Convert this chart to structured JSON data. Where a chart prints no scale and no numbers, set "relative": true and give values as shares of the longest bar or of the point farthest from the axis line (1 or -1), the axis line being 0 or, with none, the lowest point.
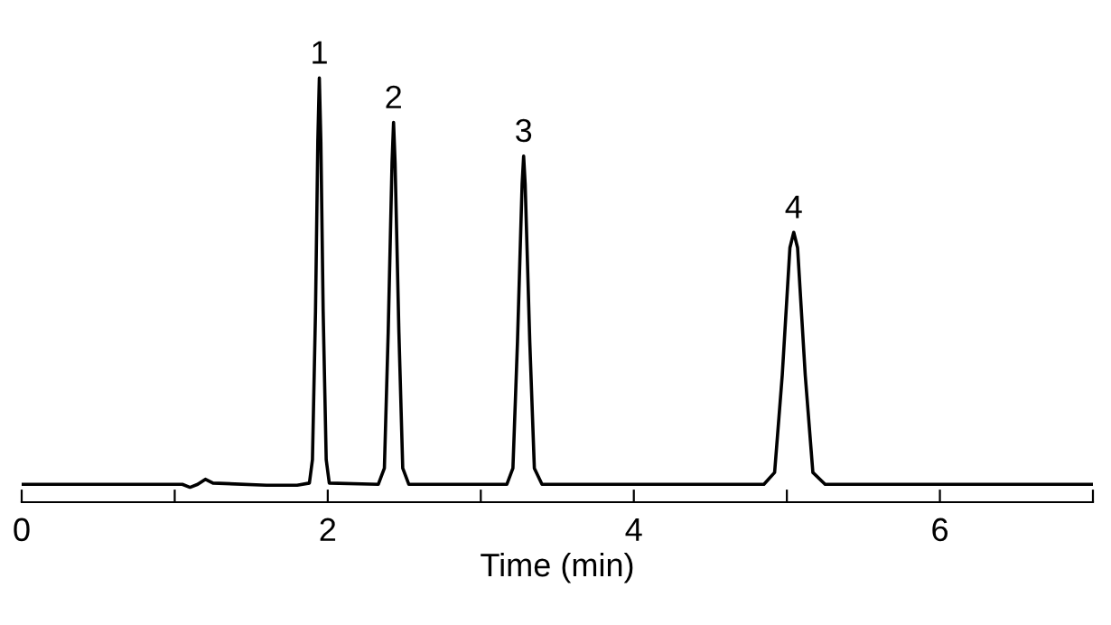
{
  "chart_data": {
    "type": "line",
    "relative": true,
    "xlabel": "Time (min)",
    "x": [
      0,
      0.5,
      1.05,
      1.1,
      1.15,
      1.2,
      1.25,
      1.6,
      1.8,
      1.88,
      1.9,
      1.92,
      1.935,
      1.945,
      1.955,
      1.97,
      1.99,
      2.01,
      2.33,
      2.37,
      2.395,
      2.42,
      2.43,
      2.44,
      2.465,
      2.49,
      2.53,
      3.17,
      3.21,
      3.24,
      3.27,
      3.28,
      3.29,
      3.32,
      3.35,
      3.4,
      4.85,
      4.92,
      4.97,
      5.02,
      5.045,
      5.07,
      5.12,
      5.17,
      5.25,
      7.0
    ],
    "series": [
      {
        "color": "#000000",
        "values": [
          0.042,
          0.042,
          0.042,
          0.035,
          0.042,
          0.054,
          0.045,
          0.04,
          0.04,
          0.045,
          0.1,
          0.45,
          0.85,
          1.0,
          0.85,
          0.45,
          0.1,
          0.045,
          0.042,
          0.08,
          0.4,
          0.8,
          0.895,
          0.8,
          0.4,
          0.08,
          0.042,
          0.042,
          0.08,
          0.38,
          0.75,
          0.816,
          0.75,
          0.38,
          0.08,
          0.042,
          0.042,
          0.07,
          0.3,
          0.6,
          0.636,
          0.6,
          0.3,
          0.07,
          0.042,
          0.042
        ]
      }
    ],
    "xlim": [
      0,
      7
    ],
    "xticks": [
      0,
      {
        "value": 1,
        "label": null
      },
      2,
      {
        "value": 3,
        "label": null
      },
      4,
      {
        "value": 5,
        "label": null
      },
      6,
      {
        "value": 7,
        "label": null
      }
    ],
    "annotations": [
      {
        "text": "1",
        "x": 1.945,
        "y": 1.0
      },
      {
        "text": "2",
        "x": 2.43,
        "y": 0.895
      },
      {
        "text": "3",
        "x": 3.28,
        "y": 0.816
      },
      {
        "text": "4",
        "x": 5.045,
        "y": 0.636
      }
    ],
    "tick_labels": "x",
    "grid": false,
    "legend": false
  }
}
